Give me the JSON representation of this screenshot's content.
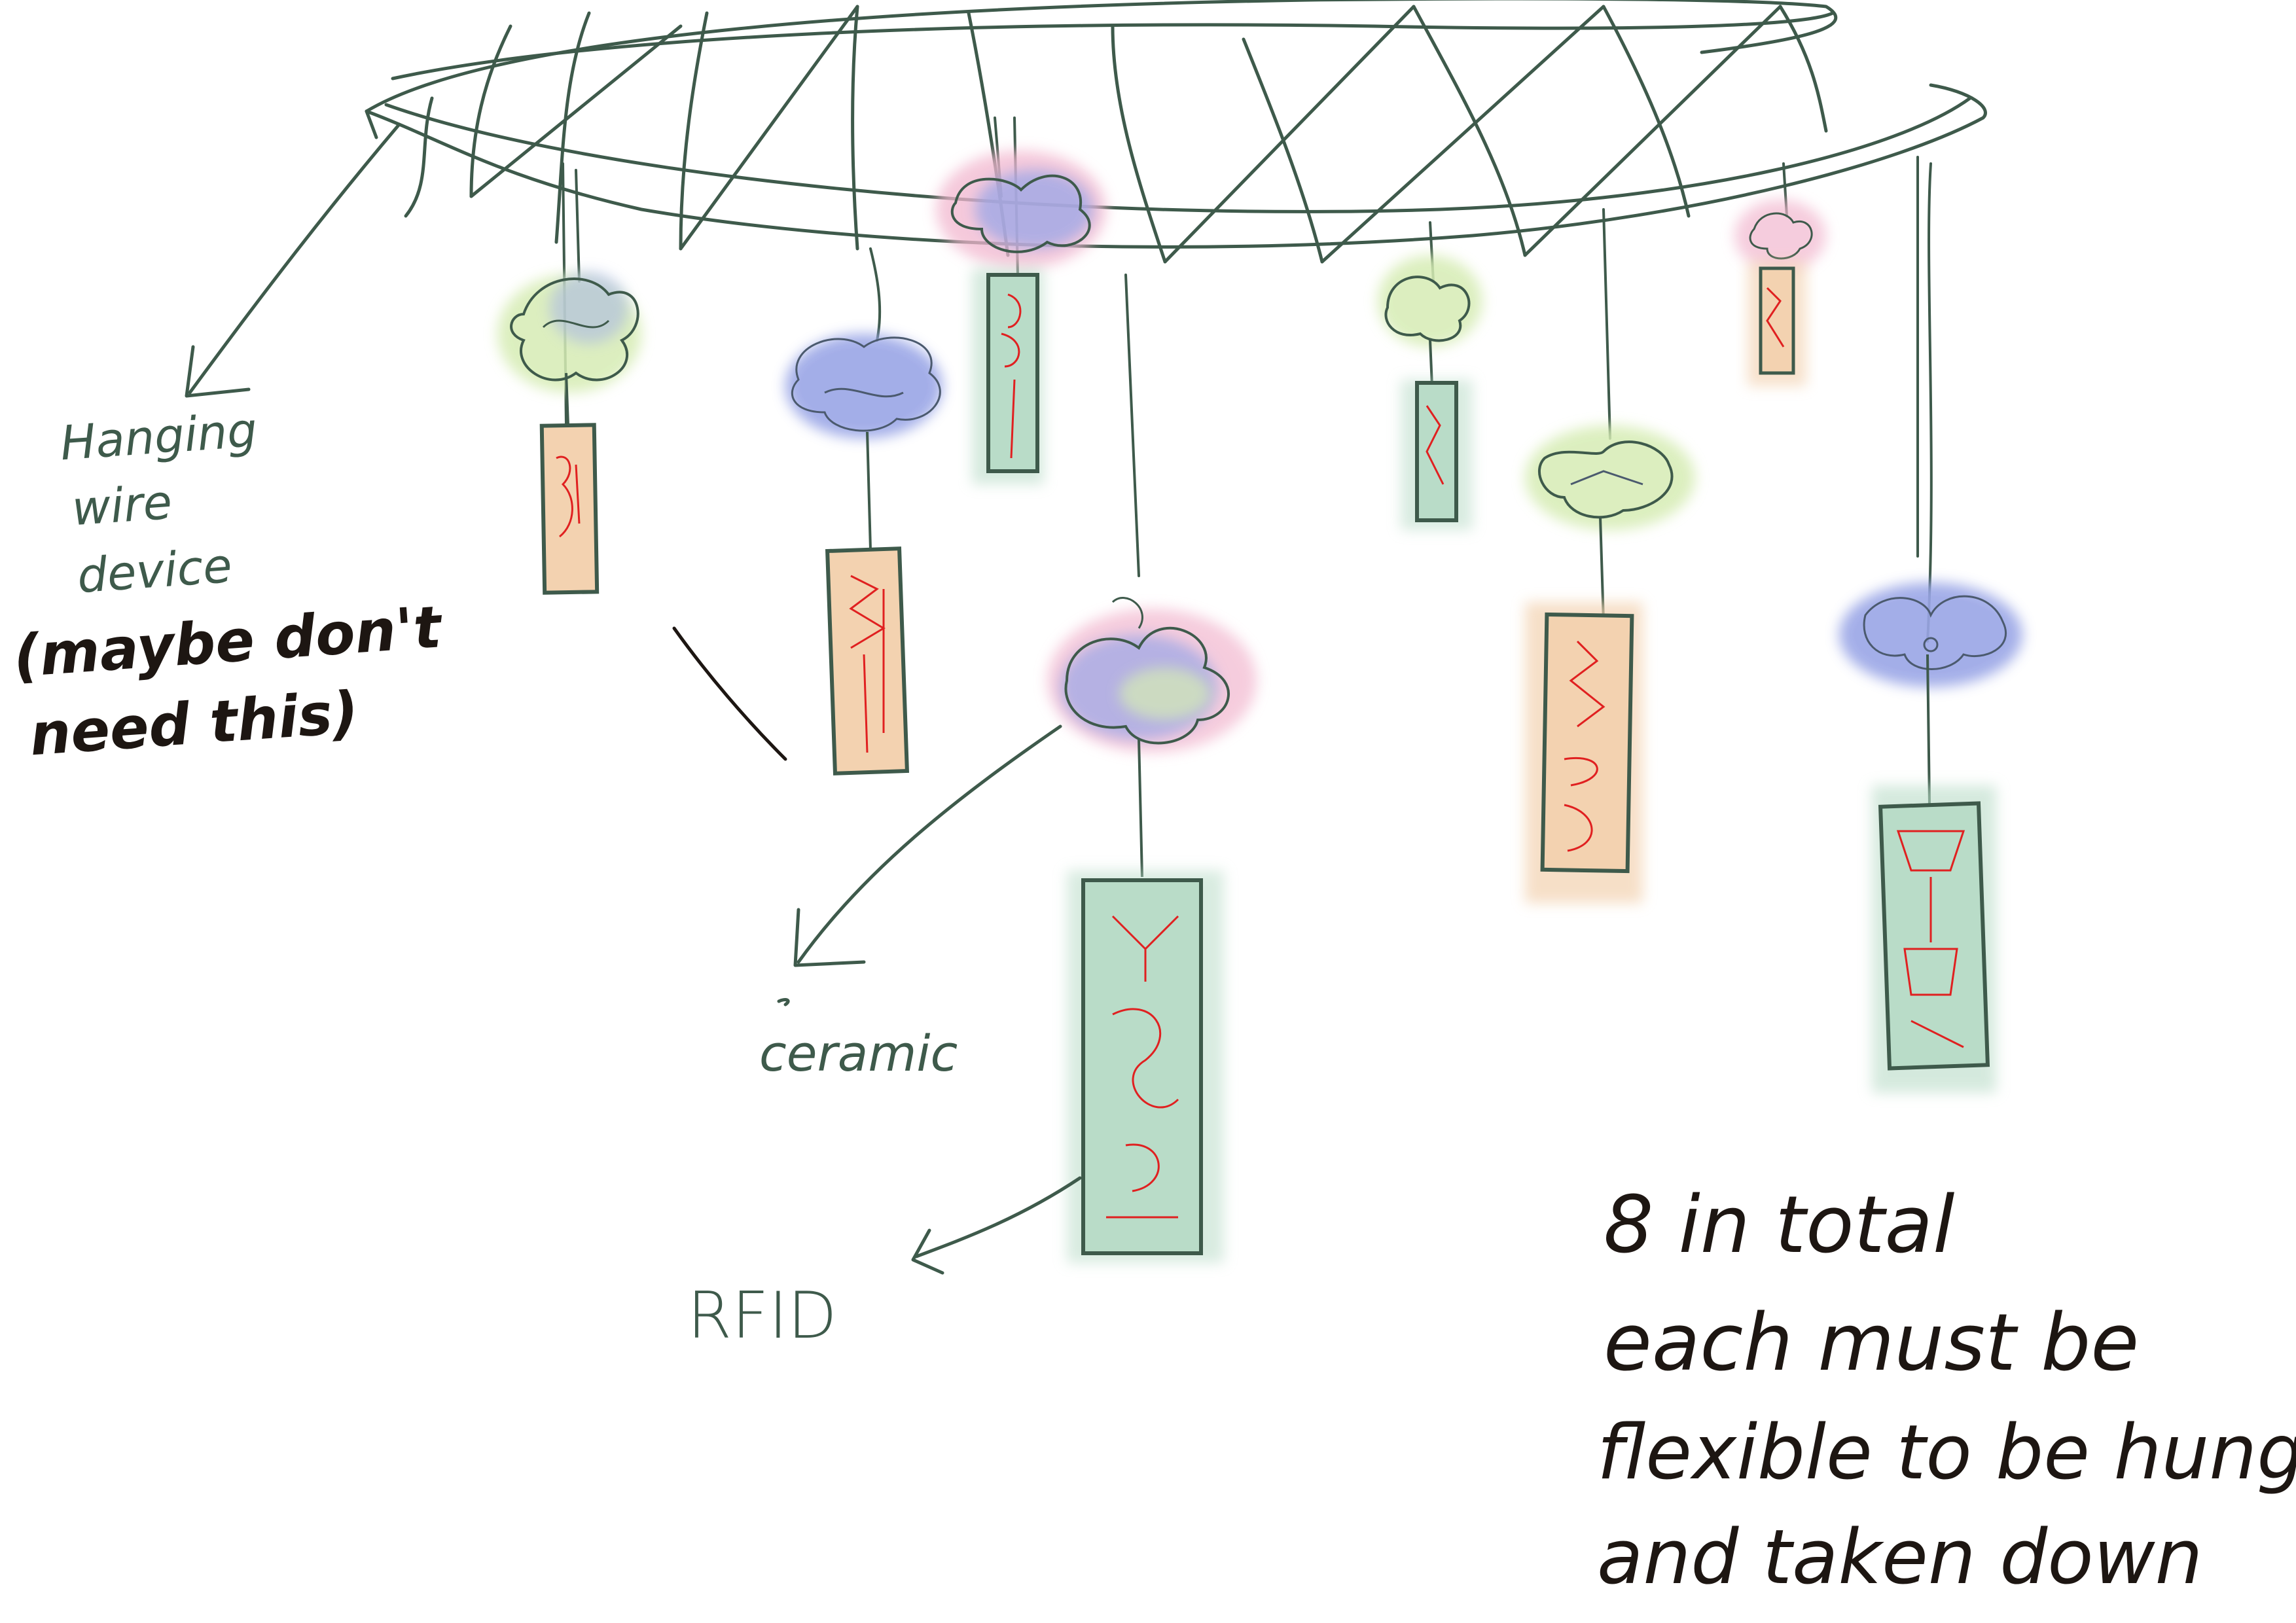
{
  "annotations": {
    "hanging_device": [
      "Hanging",
      "wire",
      "device",
      "(maybe don't",
      "need this)"
    ],
    "ceramic": "ceramic",
    "rfid": "RFID",
    "notes": [
      "8 in total",
      "each must be",
      "flexible to be hung",
      "and taken down"
    ]
  },
  "colors": {
    "wire": "#3e5a4b",
    "ink": "#1d1612",
    "tag_green": "#b9dcc8",
    "tag_orange": "#f3d2b0",
    "pattern_red": "#e02020",
    "flower_blue": "#9aa6e6",
    "flower_green": "#d6ecb4",
    "flower_pink": "#f2b7cf"
  },
  "icons": [
    "arrow-icon",
    "flower-icon",
    "tag-icon"
  ]
}
